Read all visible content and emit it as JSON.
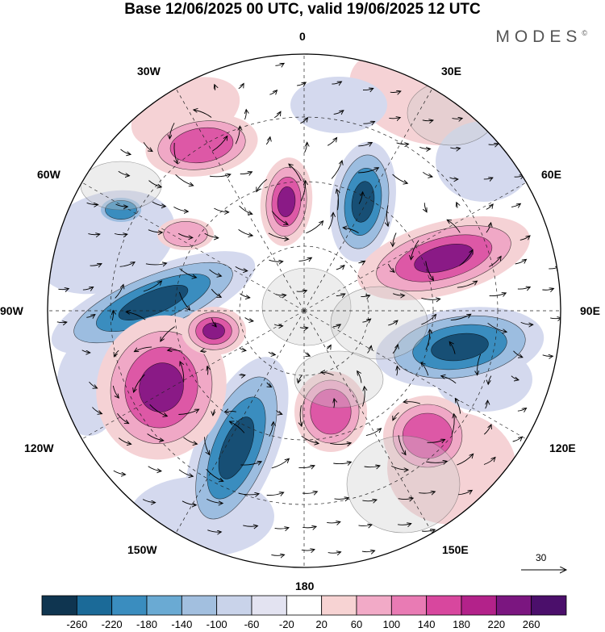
{
  "title": "Base 12/06/2025 00 UTC, valid 19/06/2025 12 UTC",
  "brand": "MODES",
  "brand_mark": "©",
  "longitude_labels": {
    "top": "0",
    "upper_left": "30W",
    "upper_right": "30E",
    "left_upper": "60W",
    "right_upper": "60E",
    "left": "90W",
    "right": "90E",
    "left_lower": "120W",
    "right_lower": "120E",
    "lower_left": "150W",
    "lower_right": "150E",
    "bottom": "180"
  },
  "reference_vector": {
    "label": "30"
  },
  "colorbar": {
    "ticks": [
      "-260",
      "-220",
      "-180",
      "-140",
      "-100",
      "-60",
      "-20",
      "20",
      "60",
      "100",
      "140",
      "180",
      "220",
      "260"
    ],
    "colors": [
      "#0f3550",
      "#1b6a98",
      "#3a8dbf",
      "#6aaad3",
      "#a2bfdf",
      "#c9d3ea",
      "#e3e3f1",
      "#ffffff",
      "#f7d3d3",
      "#f2aac7",
      "#e97bb4",
      "#d8479e",
      "#b3228a",
      "#7b1680",
      "#4b0f6b"
    ]
  },
  "map_colors": {
    "neg_strong": "#174f75",
    "neg_mid": "#3a8dbf",
    "neg_light": "#9cbde0",
    "neg_faint": "#d4d9ee",
    "pos_faint": "#f5d2d5",
    "pos_light": "#f0a8c6",
    "pos_mid": "#dd58a6",
    "pos_strong": "#8a1a86",
    "land_tint": "#cccccc",
    "graticule": "#222222"
  }
}
